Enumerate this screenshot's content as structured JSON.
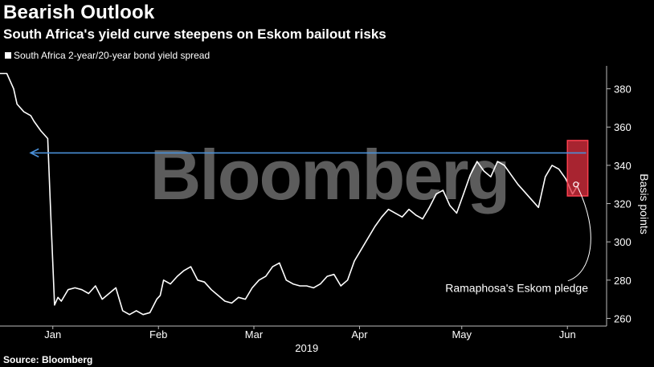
{
  "header": {
    "title": "Bearish Outlook",
    "subtitle": "South Africa's yield curve steepens on Eskom bailout risks"
  },
  "footer": {
    "source": "Source: Bloomberg"
  },
  "watermark": "Bloomberg",
  "colors": {
    "background": "#000000",
    "line": "#ffffff",
    "arrow": "#4a90d9",
    "highlight": "#e03040",
    "watermark": "#5c5c5c"
  },
  "chart_data": {
    "type": "line",
    "title": "Bearish Outlook",
    "subtitle": "South Africa's yield curve steepens on Eskom bailout risks",
    "ylabel": "Basis points",
    "xlabel": "2019",
    "ylim": [
      256,
      392
    ],
    "yticks": [
      260,
      280,
      300,
      320,
      340,
      360,
      380
    ],
    "xticks": [
      {
        "label": "Jan",
        "x": 15.5
      },
      {
        "label": "Feb",
        "x": 46.5
      },
      {
        "label": "Mar",
        "x": 74.5
      },
      {
        "label": "Apr",
        "x": 105.5
      },
      {
        "label": "May",
        "x": 135.5
      },
      {
        "label": "Jun",
        "x": 166.5
      }
    ],
    "xlim": [
      0,
      178
    ],
    "grid": false,
    "legend": "top-left",
    "series": [
      {
        "name": "South Africa 2-year/20-year bond yield spread",
        "x": [
          0,
          2,
          4,
          5,
          7,
          9,
          10,
          12,
          14,
          15,
          16,
          17,
          18,
          20,
          22,
          24,
          26,
          28,
          30,
          32,
          34,
          36,
          38,
          40,
          42,
          44,
          46,
          47,
          48,
          50,
          52,
          54,
          56,
          58,
          60,
          62,
          64,
          66,
          68,
          70,
          72,
          74,
          76,
          78,
          80,
          82,
          84,
          86,
          88,
          90,
          92,
          94,
          96,
          98,
          100,
          102,
          104,
          106,
          108,
          110,
          112,
          114,
          116,
          118,
          120,
          122,
          124,
          126,
          128,
          130,
          132,
          134,
          136,
          138,
          140,
          142,
          144,
          146,
          148,
          150,
          152,
          154,
          156,
          158,
          160,
          162,
          164,
          166,
          168,
          170
        ],
        "values": [
          388,
          388,
          380,
          372,
          368,
          366,
          363,
          358,
          354,
          310,
          267,
          271,
          269,
          275,
          276,
          275,
          273,
          277,
          270,
          273,
          276,
          264,
          262,
          264,
          262,
          263,
          270,
          272,
          280,
          278,
          282,
          285,
          287,
          280,
          279,
          275,
          272,
          269,
          268,
          271,
          270,
          276,
          280,
          282,
          287,
          289,
          280,
          278,
          277,
          277,
          276,
          278,
          282,
          283,
          277,
          280,
          290,
          296,
          302,
          308,
          313,
          317,
          315,
          313,
          317,
          314,
          312,
          318,
          325,
          327,
          319,
          315,
          325,
          335,
          342,
          337,
          334,
          342,
          340,
          335,
          330,
          326,
          322,
          318,
          334,
          340,
          338,
          333,
          325,
          331
        ]
      }
    ],
    "annotations": [
      {
        "type": "arrow",
        "from": {
          "x": 172,
          "y": 346.5
        },
        "to": {
          "x": 9,
          "y": 346.5
        }
      },
      {
        "type": "highlight-box",
        "x0": 166.5,
        "x1": 172.5,
        "y0": 324,
        "y1": 353
      },
      {
        "type": "callout",
        "text": "Ramaphosa's Eskom pledge",
        "point": {
          "x": 169,
          "y": 330
        }
      }
    ]
  }
}
